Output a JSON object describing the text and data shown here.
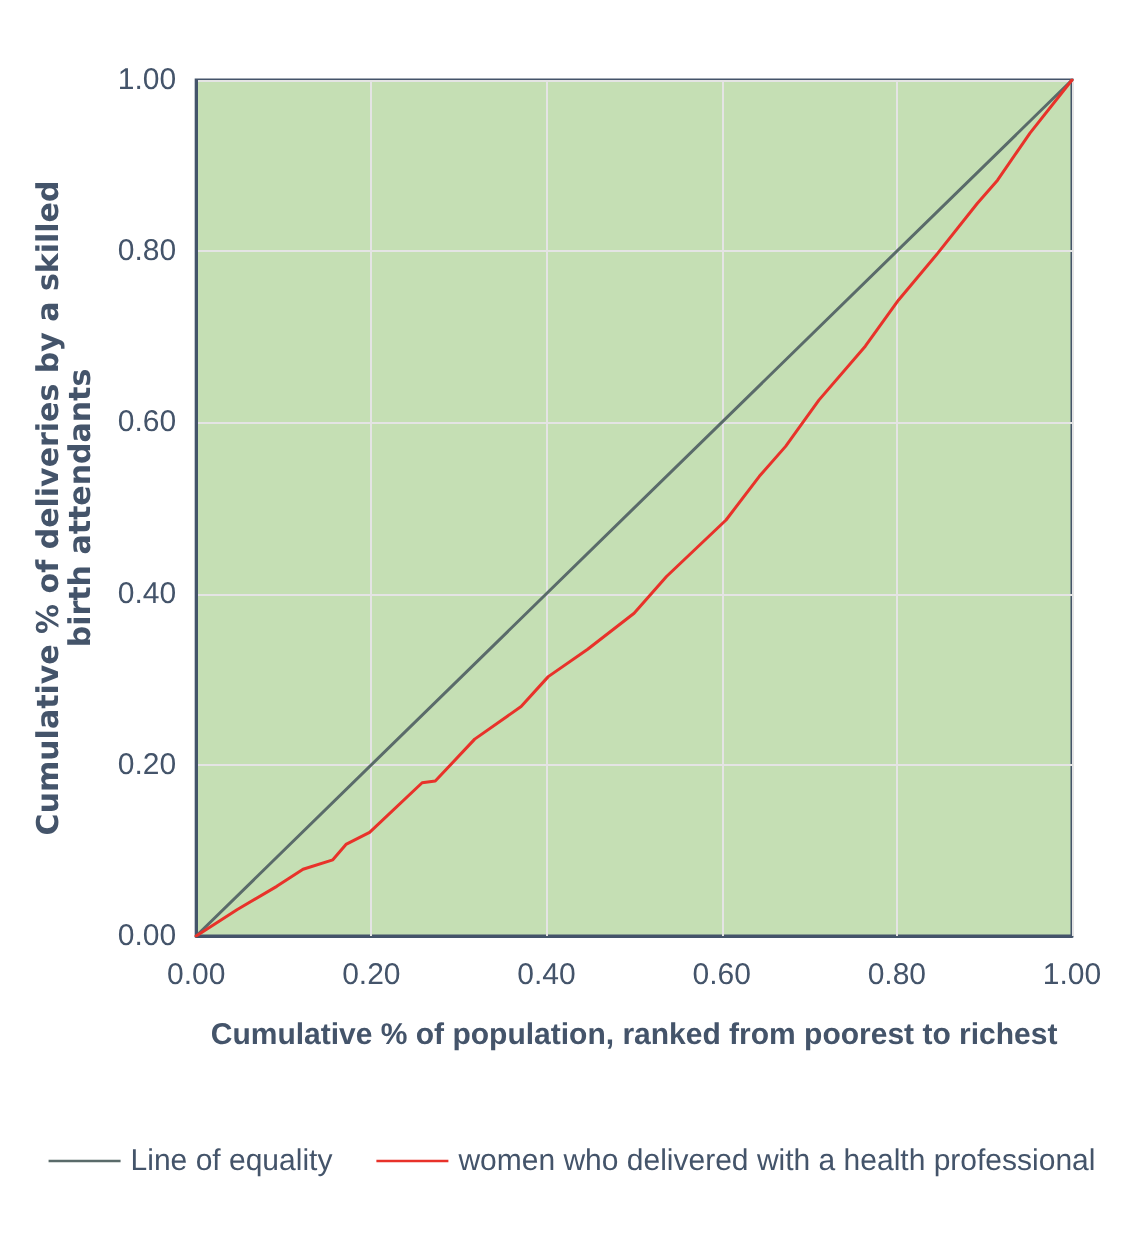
{
  "chart_data": {
    "type": "line",
    "xlabel": "Cumulative % of population, ranked from poorest to richest",
    "ylabel": "Cumulative % of deliveries by a skilled\nbirth attendants",
    "xlim": [
      0,
      1
    ],
    "ylim": [
      0,
      1
    ],
    "xticks": [
      {
        "value": 0,
        "label": "0.00"
      },
      {
        "value": 0.2,
        "label": "0.20"
      },
      {
        "value": 0.4,
        "label": "0.40"
      },
      {
        "value": 0.6,
        "label": "0.60"
      },
      {
        "value": 0.8,
        "label": "0.80"
      },
      {
        "value": 1,
        "label": "1.00"
      }
    ],
    "yticks": [
      {
        "value": 0,
        "label": "0.00"
      },
      {
        "value": 0.2,
        "label": "0.20"
      },
      {
        "value": 0.4,
        "label": "0.40"
      },
      {
        "value": 0.6,
        "label": "0.60"
      },
      {
        "value": 0.8,
        "label": "0.80"
      },
      {
        "value": 1,
        "label": "1.00"
      }
    ],
    "grid": true,
    "legend": "bottom",
    "marker": "none",
    "line_style": "solid",
    "series": [
      {
        "name": "Line of equality",
        "color": "#5a6b6a",
        "x": [
          0,
          1
        ],
        "values": [
          0,
          1
        ]
      },
      {
        "name": "women who delivered with a health professional",
        "color": "#e8322a",
        "x": [
          0,
          0.047,
          0.092,
          0.122,
          0.156,
          0.171,
          0.198,
          0.258,
          0.273,
          0.318,
          0.371,
          0.402,
          0.447,
          0.5,
          0.537,
          0.605,
          0.643,
          0.673,
          0.711,
          0.764,
          0.802,
          0.847,
          0.892,
          0.915,
          0.952,
          1
        ],
        "values": [
          0,
          0.031,
          0.058,
          0.078,
          0.089,
          0.107,
          0.121,
          0.179,
          0.181,
          0.23,
          0.268,
          0.303,
          0.335,
          0.377,
          0.42,
          0.486,
          0.537,
          0.572,
          0.626,
          0.689,
          0.743,
          0.798,
          0.856,
          0.883,
          0.938,
          1
        ]
      }
    ]
  }
}
